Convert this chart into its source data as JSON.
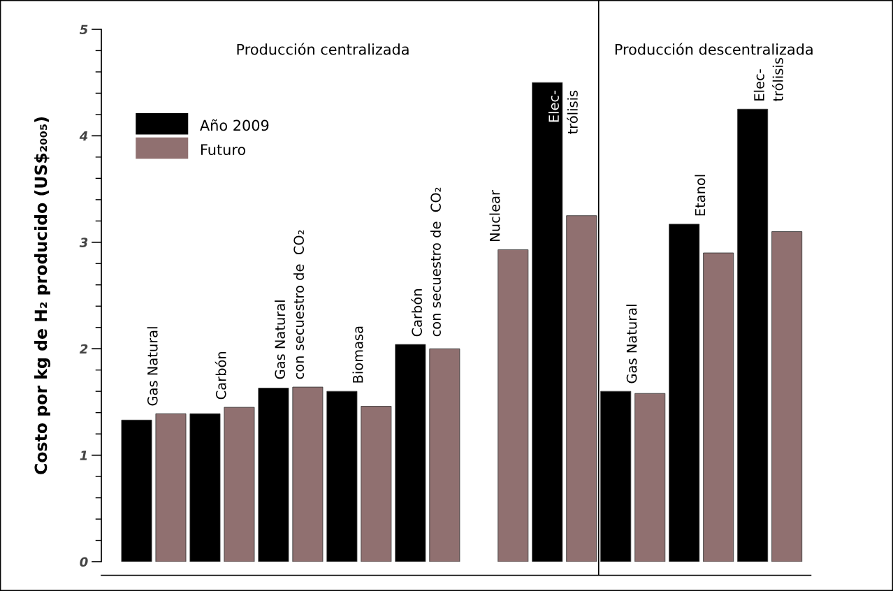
{
  "chart_data": {
    "type": "bar",
    "ylabel": "Costo por kg de H₂ producido (US$₂₀₀₅)",
    "categories": [
      "Gas Natural",
      "Carbón",
      "Gas Natural\ncon secuestro de  CO₂",
      "Biomasa",
      "Carbón\ncon secuestro de  CO₂",
      "Nuclear",
      "Elec-\ntrólisis",
      "Gas Natural",
      "Etanol",
      "Elec-\ntrólisis"
    ],
    "series": [
      {
        "name": "Año 2009",
        "color": "#000000",
        "values": [
          1.33,
          1.39,
          1.63,
          1.6,
          2.04,
          null,
          4.5,
          1.6,
          3.17,
          4.25
        ]
      },
      {
        "name": "Futuro",
        "color": "#907070",
        "values": [
          1.39,
          1.45,
          1.64,
          1.46,
          2.0,
          2.93,
          3.25,
          1.58,
          2.9,
          3.1
        ]
      }
    ],
    "ylim": [
      0,
      5
    ],
    "yticks": [
      0,
      1,
      2,
      3,
      4,
      5
    ],
    "annotations": [
      "Producción centralizada",
      "Producción descentralizada"
    ],
    "legend": "top left",
    "grid": false
  }
}
